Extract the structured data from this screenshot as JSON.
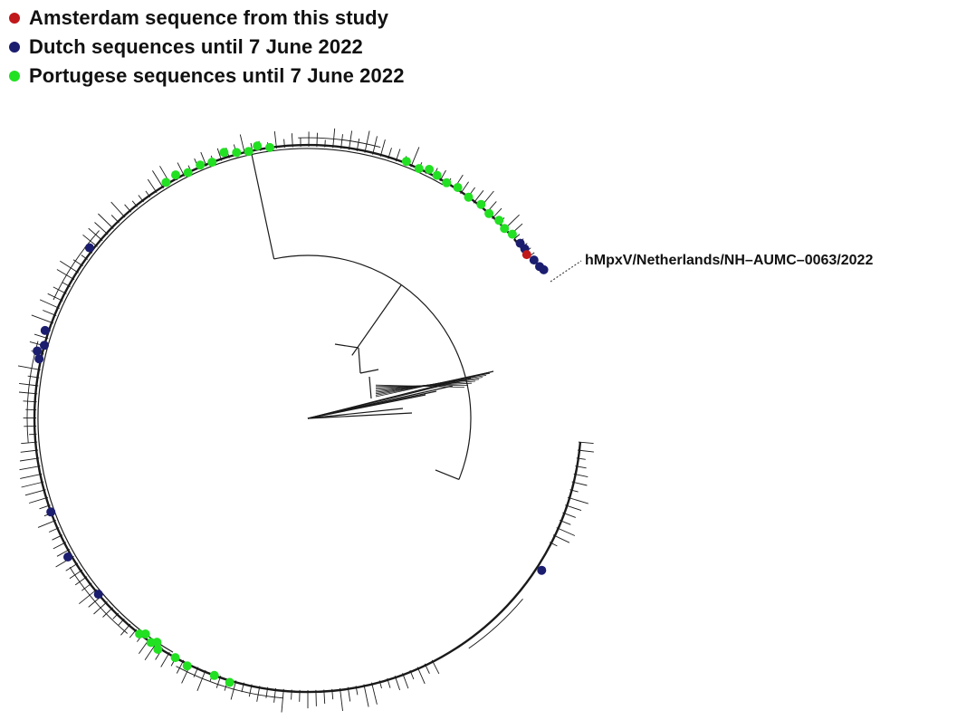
{
  "legend": [
    {
      "label": "Amsterdam sequence from this study",
      "color": "#c0181b"
    },
    {
      "label": "Dutch sequences until 7 June 2022",
      "color": "#1b1d6f"
    },
    {
      "label": "Portugese sequences until 7 June 2022",
      "color": "#22e022"
    }
  ],
  "highlight_label": "hMpxV/Netherlands/NH–AUMC–0063/2022",
  "colors": {
    "branch": "#1a1a1a",
    "amsterdam": "#c0181b",
    "dutch": "#1b1d6f",
    "portuguese": "#22e022"
  }
}
